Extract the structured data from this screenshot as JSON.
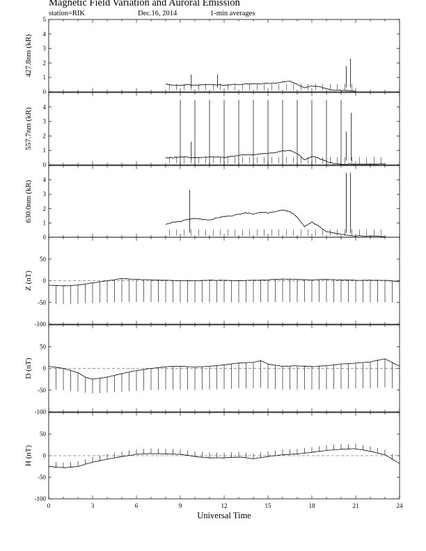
{
  "header": {
    "title": "Magnetic Field Variation and Auroral Emission",
    "station": "station=RIK",
    "date": "Dec.16, 2014",
    "averaging": "1-min averages"
  },
  "chart_data": {
    "type": "line",
    "x": {
      "label": "Universal Time",
      "range": [
        0,
        24
      ],
      "ticks": [
        "0",
        "3",
        "6",
        "9",
        "12",
        "15",
        "18",
        "21",
        "24"
      ]
    },
    "panels": [
      {
        "id": "427",
        "ylabel": "427.8nm (kR)",
        "ylim": [
          0,
          5
        ],
        "yticks": [
          "0",
          "1",
          "2",
          "3",
          "4",
          "5"
        ],
        "baseline": 0,
        "dashed_zero": false,
        "series": [
          {
            "x": 8.0,
            "y": 0.55
          },
          {
            "x": 8.5,
            "y": 0.45
          },
          {
            "x": 9.0,
            "y": 0.45
          },
          {
            "x": 9.5,
            "y": 0.5
          },
          {
            "x": 10.0,
            "y": 0.45
          },
          {
            "x": 10.5,
            "y": 0.5
          },
          {
            "x": 11.0,
            "y": 0.5
          },
          {
            "x": 11.5,
            "y": 0.5
          },
          {
            "x": 12.0,
            "y": 0.45
          },
          {
            "x": 12.5,
            "y": 0.5
          },
          {
            "x": 13.0,
            "y": 0.5
          },
          {
            "x": 13.5,
            "y": 0.55
          },
          {
            "x": 14.0,
            "y": 0.55
          },
          {
            "x": 14.5,
            "y": 0.55
          },
          {
            "x": 15.0,
            "y": 0.6
          },
          {
            "x": 15.5,
            "y": 0.6
          },
          {
            "x": 16.0,
            "y": 0.7
          },
          {
            "x": 16.5,
            "y": 0.75
          },
          {
            "x": 17.0,
            "y": 0.5
          },
          {
            "x": 17.5,
            "y": 0.3
          },
          {
            "x": 18.0,
            "y": 0.4
          },
          {
            "x": 18.5,
            "y": 0.35
          },
          {
            "x": 19.0,
            "y": 0.2
          },
          {
            "x": 19.5,
            "y": 0.1
          },
          {
            "x": 20.0,
            "y": 0.1
          },
          {
            "x": 20.5,
            "y": 0.1
          },
          {
            "x": 21.0,
            "y": 0.05
          }
        ],
        "spikes": [
          {
            "x": 9.75,
            "y": 1.2
          },
          {
            "x": 11.55,
            "y": 1.2
          },
          {
            "x": 20.35,
            "y": 1.8
          },
          {
            "x": 20.65,
            "y": 2.3
          }
        ],
        "pulses": [],
        "data_range": [
          8.0,
          21.2
        ]
      },
      {
        "id": "557",
        "ylabel": "557.7nm (kR)",
        "ylim": [
          0,
          5
        ],
        "yticks": [
          "0",
          "1",
          "2",
          "3",
          "4"
        ],
        "baseline": 0,
        "dashed_zero": false,
        "series": [
          {
            "x": 8.0,
            "y": 0.5
          },
          {
            "x": 8.5,
            "y": 0.5
          },
          {
            "x": 9.0,
            "y": 0.55
          },
          {
            "x": 9.5,
            "y": 0.55
          },
          {
            "x": 10.0,
            "y": 0.5
          },
          {
            "x": 10.5,
            "y": 0.5
          },
          {
            "x": 11.0,
            "y": 0.55
          },
          {
            "x": 11.5,
            "y": 0.55
          },
          {
            "x": 12.0,
            "y": 0.5
          },
          {
            "x": 12.5,
            "y": 0.6
          },
          {
            "x": 13.0,
            "y": 0.65
          },
          {
            "x": 13.5,
            "y": 0.7
          },
          {
            "x": 14.0,
            "y": 0.7
          },
          {
            "x": 14.5,
            "y": 0.75
          },
          {
            "x": 15.0,
            "y": 0.8
          },
          {
            "x": 15.5,
            "y": 0.85
          },
          {
            "x": 16.0,
            "y": 0.95
          },
          {
            "x": 16.5,
            "y": 1.0
          },
          {
            "x": 17.0,
            "y": 0.8
          },
          {
            "x": 17.5,
            "y": 0.35
          },
          {
            "x": 18.0,
            "y": 0.6
          },
          {
            "x": 18.5,
            "y": 0.45
          },
          {
            "x": 19.0,
            "y": 0.25
          },
          {
            "x": 19.5,
            "y": 0.1
          },
          {
            "x": 20.0,
            "y": 0.05
          },
          {
            "x": 21.0,
            "y": 0.05
          },
          {
            "x": 23.0,
            "y": 0.05
          }
        ],
        "spikes": [
          {
            "x": 9.75,
            "y": 1.6
          },
          {
            "x": 20.35,
            "y": 2.3
          },
          {
            "x": 20.7,
            "y": 3.6
          }
        ],
        "pulses": [
          {
            "x": 9.0,
            "y": 4.5
          },
          {
            "x": 10.0,
            "y": 4.5
          },
          {
            "x": 11.0,
            "y": 4.5
          },
          {
            "x": 12.0,
            "y": 4.5
          },
          {
            "x": 13.0,
            "y": 4.5
          },
          {
            "x": 14.0,
            "y": 4.5
          },
          {
            "x": 15.0,
            "y": 4.5
          },
          {
            "x": 16.0,
            "y": 4.5
          },
          {
            "x": 17.0,
            "y": 4.5
          },
          {
            "x": 18.0,
            "y": 4.5
          },
          {
            "x": 19.0,
            "y": 4.5
          },
          {
            "x": 20.0,
            "y": 4.5
          }
        ],
        "data_range": [
          8.0,
          23.0
        ]
      },
      {
        "id": "630",
        "ylabel": "630.0nm (kR)",
        "ylim": [
          0,
          5
        ],
        "yticks": [
          "0",
          "1",
          "2",
          "3",
          "4"
        ],
        "baseline": 0,
        "dashed_zero": false,
        "series": [
          {
            "x": 8.0,
            "y": 0.9
          },
          {
            "x": 8.5,
            "y": 1.05
          },
          {
            "x": 9.0,
            "y": 1.1
          },
          {
            "x": 9.5,
            "y": 1.25
          },
          {
            "x": 10.0,
            "y": 1.3
          },
          {
            "x": 10.5,
            "y": 1.25
          },
          {
            "x": 11.0,
            "y": 1.2
          },
          {
            "x": 11.5,
            "y": 1.35
          },
          {
            "x": 12.0,
            "y": 1.45
          },
          {
            "x": 12.5,
            "y": 1.5
          },
          {
            "x": 13.0,
            "y": 1.6
          },
          {
            "x": 13.5,
            "y": 1.7
          },
          {
            "x": 14.0,
            "y": 1.6
          },
          {
            "x": 14.5,
            "y": 1.75
          },
          {
            "x": 15.0,
            "y": 1.7
          },
          {
            "x": 15.5,
            "y": 1.8
          },
          {
            "x": 16.0,
            "y": 1.9
          },
          {
            "x": 16.5,
            "y": 1.8
          },
          {
            "x": 17.0,
            "y": 1.4
          },
          {
            "x": 17.5,
            "y": 0.75
          },
          {
            "x": 18.0,
            "y": 1.05
          },
          {
            "x": 18.5,
            "y": 0.75
          },
          {
            "x": 19.0,
            "y": 0.4
          },
          {
            "x": 19.5,
            "y": 0.3
          },
          {
            "x": 20.0,
            "y": 0.2
          },
          {
            "x": 21.0,
            "y": 0.1
          },
          {
            "x": 23.0,
            "y": 0.05
          }
        ],
        "spikes": [
          {
            "x": 9.65,
            "y": 3.3
          },
          {
            "x": 20.35,
            "y": 4.5
          },
          {
            "x": 20.65,
            "y": 4.5
          }
        ],
        "pulses": [],
        "data_range": [
          8.0,
          23.0
        ]
      },
      {
        "id": "Z",
        "ylabel": "Z (nT)",
        "ylim": [
          -100,
          100
        ],
        "yticks": [
          "-100",
          "-50",
          "0",
          "50"
        ],
        "baseline": 0,
        "dashed_zero": true,
        "series": [
          {
            "x": 0,
            "y": -10
          },
          {
            "x": 1,
            "y": -12
          },
          {
            "x": 2,
            "y": -10
          },
          {
            "x": 3,
            "y": -5
          },
          {
            "x": 4,
            "y": 0
          },
          {
            "x": 5,
            "y": 5
          },
          {
            "x": 6,
            "y": 3
          },
          {
            "x": 7,
            "y": 2
          },
          {
            "x": 8,
            "y": 1
          },
          {
            "x": 9,
            "y": 0
          },
          {
            "x": 10,
            "y": 0
          },
          {
            "x": 11,
            "y": 1
          },
          {
            "x": 12,
            "y": 1
          },
          {
            "x": 13,
            "y": 0
          },
          {
            "x": 14,
            "y": 1
          },
          {
            "x": 15,
            "y": 2
          },
          {
            "x": 16,
            "y": 4
          },
          {
            "x": 17,
            "y": 3
          },
          {
            "x": 18,
            "y": 2
          },
          {
            "x": 19,
            "y": 3
          },
          {
            "x": 20,
            "y": 2
          },
          {
            "x": 21,
            "y": 1
          },
          {
            "x": 22,
            "y": 1
          },
          {
            "x": 23,
            "y": 1
          },
          {
            "x": 24,
            "y": -2
          }
        ],
        "spikes": [],
        "pulses_down": -50,
        "data_range": [
          0,
          24
        ]
      },
      {
        "id": "D",
        "ylabel": "D (nT)",
        "ylim": [
          -100,
          100
        ],
        "yticks": [
          "-100",
          "-50",
          "0",
          "50"
        ],
        "baseline": 0,
        "dashed_zero": true,
        "series": [
          {
            "x": 0,
            "y": 5
          },
          {
            "x": 1,
            "y": 0
          },
          {
            "x": 2,
            "y": -10
          },
          {
            "x": 2.5,
            "y": -20
          },
          {
            "x": 3,
            "y": -25
          },
          {
            "x": 4,
            "y": -20
          },
          {
            "x": 5,
            "y": -12
          },
          {
            "x": 6,
            "y": -5
          },
          {
            "x": 7,
            "y": 0
          },
          {
            "x": 8,
            "y": 4
          },
          {
            "x": 9,
            "y": 5
          },
          {
            "x": 10,
            "y": 3
          },
          {
            "x": 11,
            "y": 5
          },
          {
            "x": 12,
            "y": 8
          },
          {
            "x": 13,
            "y": 12
          },
          {
            "x": 14,
            "y": 14
          },
          {
            "x": 14.5,
            "y": 18
          },
          {
            "x": 15,
            "y": 10
          },
          {
            "x": 16,
            "y": 5
          },
          {
            "x": 17,
            "y": 6
          },
          {
            "x": 18,
            "y": 4
          },
          {
            "x": 19,
            "y": 6
          },
          {
            "x": 20,
            "y": 10
          },
          {
            "x": 21,
            "y": 12
          },
          {
            "x": 22,
            "y": 15
          },
          {
            "x": 23,
            "y": 22
          },
          {
            "x": 24,
            "y": 5
          }
        ],
        "spikes": [],
        "pulses_down": -50,
        "data_range": [
          0,
          24
        ]
      },
      {
        "id": "H",
        "ylabel": "H (nT)",
        "ylim": [
          -100,
          100
        ],
        "yticks": [
          "-100",
          "-50",
          "0",
          "50"
        ],
        "baseline": 0,
        "dashed_zero": true,
        "series": [
          {
            "x": 0,
            "y": -25
          },
          {
            "x": 1,
            "y": -28
          },
          {
            "x": 2,
            "y": -25
          },
          {
            "x": 3,
            "y": -15
          },
          {
            "x": 4,
            "y": -8
          },
          {
            "x": 5,
            "y": -2
          },
          {
            "x": 6,
            "y": 3
          },
          {
            "x": 7,
            "y": 5
          },
          {
            "x": 8,
            "y": 4
          },
          {
            "x": 9,
            "y": 3
          },
          {
            "x": 10,
            "y": -2
          },
          {
            "x": 11,
            "y": -5
          },
          {
            "x": 12,
            "y": -5
          },
          {
            "x": 13,
            "y": -3
          },
          {
            "x": 14,
            "y": -7
          },
          {
            "x": 15,
            "y": -2
          },
          {
            "x": 16,
            "y": 2
          },
          {
            "x": 17,
            "y": 4
          },
          {
            "x": 18,
            "y": 8
          },
          {
            "x": 19,
            "y": 12
          },
          {
            "x": 20,
            "y": 15
          },
          {
            "x": 21,
            "y": 16
          },
          {
            "x": 22,
            "y": 10
          },
          {
            "x": 23,
            "y": 2
          },
          {
            "x": 24,
            "y": -18
          }
        ],
        "spikes": [],
        "pulses_up": 12,
        "data_range": [
          0,
          24
        ]
      }
    ]
  }
}
